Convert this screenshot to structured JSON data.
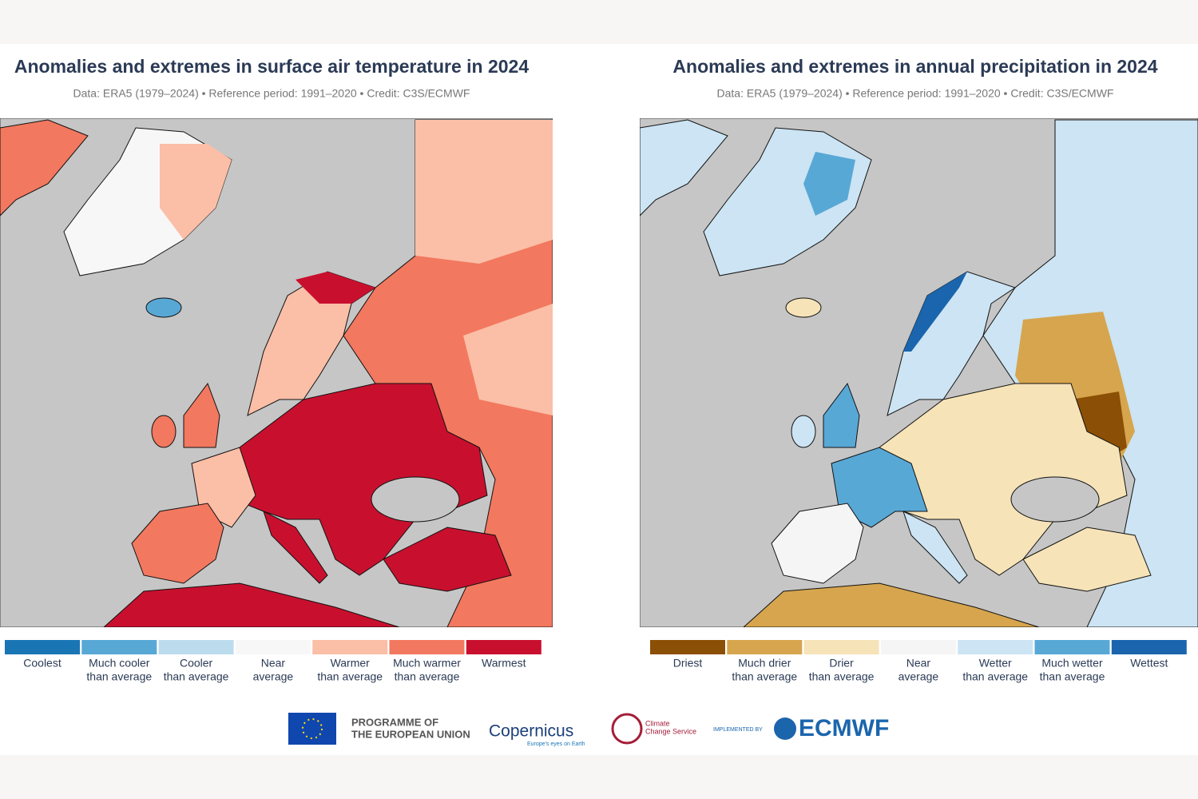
{
  "left": {
    "title": "Anomalies and extremes in surface air temperature in 2024",
    "subtitle": "Data: ERA5 (1979–2024) • Reference period: 1991–2020 • Credit: C3S/ECMWF",
    "legend": [
      {
        "label": [
          "Coolest"
        ],
        "color": "#1a75b5"
      },
      {
        "label": [
          "Much cooler",
          "than average"
        ],
        "color": "#58a8d6"
      },
      {
        "label": [
          "Cooler",
          "than average"
        ],
        "color": "#bcdcee"
      },
      {
        "label": [
          "Near",
          "average"
        ],
        "color": "#f7f7f7"
      },
      {
        "label": [
          "Warmer",
          "than average"
        ],
        "color": "#fbbea6"
      },
      {
        "label": [
          "Much warmer",
          "than average"
        ],
        "color": "#f2785f"
      },
      {
        "label": [
          "Warmest"
        ],
        "color": "#c8102e"
      }
    ]
  },
  "right": {
    "title": "Anomalies and extremes in annual precipitation in 2024",
    "subtitle": "Data: ERA5 (1979–2024) • Reference period: 1991–2020 • Credit: C3S/ECMWF",
    "legend": [
      {
        "label": [
          "Driest"
        ],
        "color": "#8c4f06"
      },
      {
        "label": [
          "Much drier",
          "than average"
        ],
        "color": "#d6a54d"
      },
      {
        "label": [
          "Drier",
          "than average"
        ],
        "color": "#f6e3b8"
      },
      {
        "label": [
          "Near",
          "average"
        ],
        "color": "#f5f5f5"
      },
      {
        "label": [
          "Wetter",
          "than average"
        ],
        "color": "#cce4f3"
      },
      {
        "label": [
          "Much wetter",
          "than average"
        ],
        "color": "#58a8d6"
      },
      {
        "label": [
          "Wettest"
        ],
        "color": "#1a65ad"
      }
    ]
  },
  "footer": {
    "eu": [
      "PROGRAMME OF",
      "THE EUROPEAN UNION"
    ],
    "copernicus": "Copernicus",
    "copernicus_tagline": "Europe's eyes on Earth",
    "c3s": [
      "Climate",
      "Change Service"
    ],
    "implemented": "IMPLEMENTED BY",
    "ecmwf": "ECMWF"
  }
}
